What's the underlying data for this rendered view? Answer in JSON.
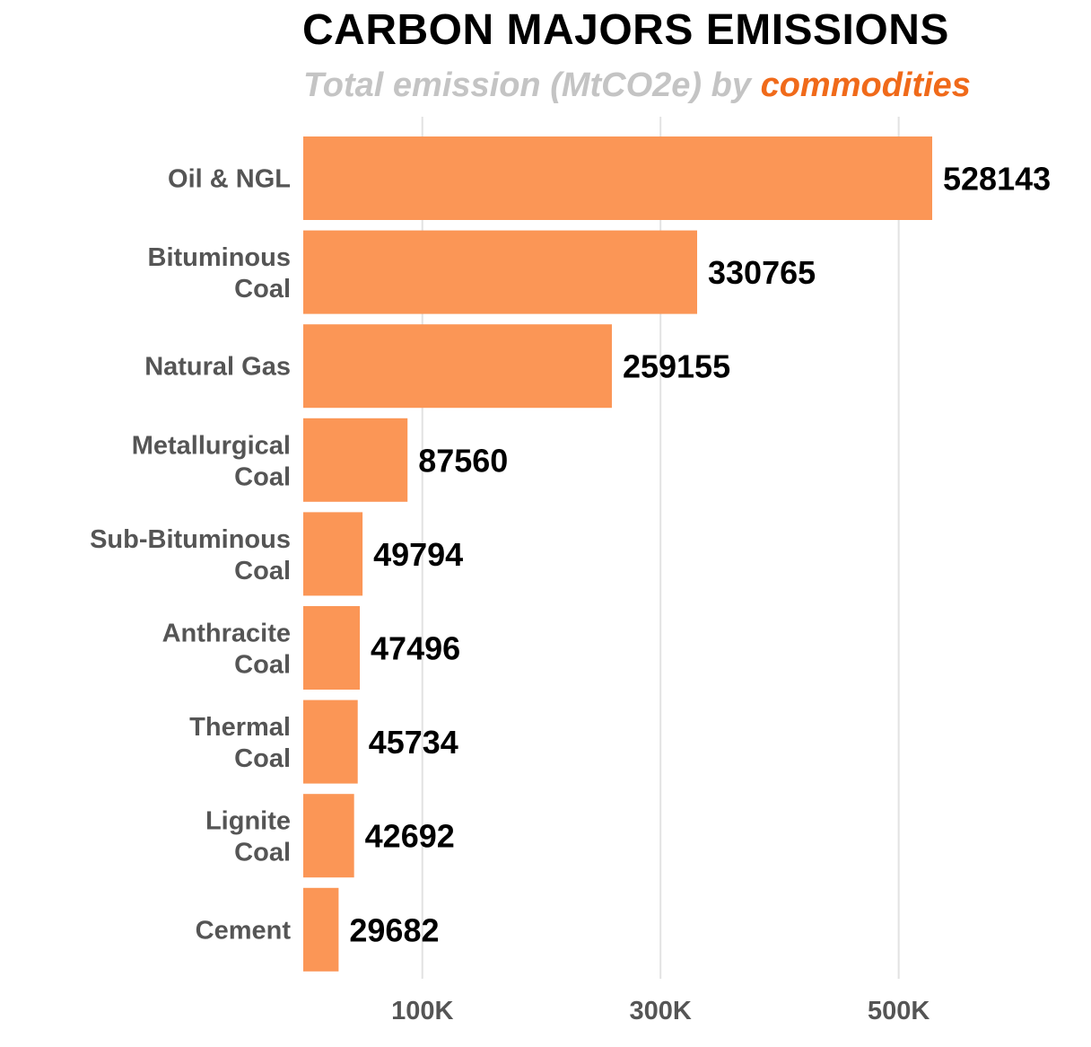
{
  "chart_data": {
    "type": "bar",
    "orientation": "horizontal",
    "title": "CARBON MAJORS EMISSIONS",
    "subtitle": {
      "prefix": "Total emission (MtCO2e) by ",
      "highlight": "commodities"
    },
    "categories": [
      [
        "Oil & NGL"
      ],
      [
        "Bituminous",
        "Coal"
      ],
      [
        "Natural Gas"
      ],
      [
        "Metallurgical",
        "Coal"
      ],
      [
        "Sub-Bituminous",
        "Coal"
      ],
      [
        "Anthracite",
        "Coal"
      ],
      [
        "Thermal",
        "Coal"
      ],
      [
        "Lignite",
        "Coal"
      ],
      [
        "Cement"
      ]
    ],
    "values": [
      528143,
      330765,
      259155,
      87560,
      49794,
      47496,
      45734,
      42692,
      29682
    ],
    "x_ticks": [
      100000,
      300000,
      500000
    ],
    "x_tick_labels": [
      "100K",
      "300K",
      "500K"
    ],
    "xlim": [
      0,
      528143
    ],
    "xlabel": "",
    "ylabel": "",
    "grid": true,
    "colors": {
      "bar": "#fb9656",
      "highlight": "#f06a1a",
      "subtitle": "#c4c4c4"
    }
  }
}
